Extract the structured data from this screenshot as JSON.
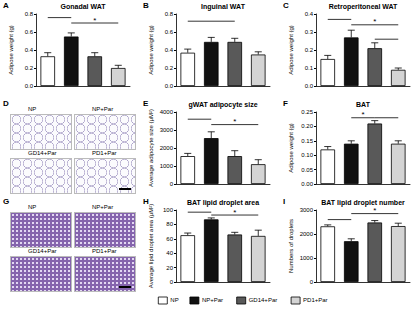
{
  "legend": "bottom",
  "chart_data": [
    {
      "letter": "A",
      "type": "bar",
      "title": "Gonadal WAT",
      "y_label": "Adipose weight (g)",
      "categories": [
        "NP",
        "NP+Par",
        "GD14+Par",
        "PD1+Par"
      ],
      "colors": [
        "#ffffff",
        "#111111",
        "#595959",
        "#d4d4d4"
      ],
      "values": [
        0.33,
        0.55,
        0.33,
        0.2
      ],
      "errors": [
        0.04,
        0.04,
        0.04,
        0.03
      ],
      "ylim": [
        0,
        0.8
      ],
      "yticks": [
        {
          "value": 0,
          "label": "0.0"
        },
        0.2,
        0.4,
        0.6,
        0.8
      ],
      "tick_labels": "y",
      "significance": [
        {
          "from": "NP",
          "to": "NP+Par",
          "y": 0.76
        },
        {
          "from": "NP+Par",
          "to": "PD1+Par",
          "y": 0.7,
          "label": "*"
        }
      ]
    },
    {
      "letter": "B",
      "type": "bar",
      "title": "Inguinal WAT",
      "y_label": "Adipose weight (g)",
      "categories": [
        "NP",
        "NP+Par",
        "GD14+Par",
        "PD1+Par"
      ],
      "colors": [
        "#ffffff",
        "#111111",
        "#595959",
        "#d4d4d4"
      ],
      "values": [
        0.37,
        0.49,
        0.49,
        0.35
      ],
      "errors": [
        0.04,
        0.05,
        0.04,
        0.03
      ],
      "ylim": [
        0,
        0.8
      ],
      "yticks": [
        {
          "value": 0,
          "label": "0.0"
        },
        0.2,
        0.4,
        0.6,
        0.8
      ],
      "tick_labels": "y",
      "significance": [
        {
          "from": "NP",
          "to": "GD14+Par",
          "y": 0.72
        }
      ]
    },
    {
      "letter": "C",
      "type": "bar",
      "title": "Retroperitoneal WAT",
      "y_label": "Adipose weight (g)",
      "categories": [
        "NP",
        "NP+Par",
        "GD14+Par",
        "PD1+Par"
      ],
      "colors": [
        "#ffffff",
        "#111111",
        "#595959",
        "#d4d4d4"
      ],
      "values": [
        0.15,
        0.27,
        0.21,
        0.09
      ],
      "errors": [
        0.02,
        0.04,
        0.03,
        0.01
      ],
      "ylim": [
        0,
        0.4
      ],
      "yticks": [
        {
          "value": 0,
          "label": "0.0"
        },
        0.1,
        0.2,
        0.3,
        0.4
      ],
      "tick_labels": "y",
      "significance": [
        {
          "from": "NP",
          "to": "NP+Par",
          "y": 0.37
        },
        {
          "from": "NP+Par",
          "to": "PD1+Par",
          "y": 0.34,
          "label": "*"
        },
        {
          "from": "GD14+Par",
          "to": "PD1+Par",
          "y": 0.26
        }
      ]
    },
    {
      "letter": "E",
      "type": "bar",
      "title": "gWAT adipocyte size",
      "y_label": "Average adipocyte size (μM²)",
      "categories": [
        "NP",
        "NP+Par",
        "GD14+Par",
        "PD1+Par"
      ],
      "colors": [
        "#ffffff",
        "#111111",
        "#595959",
        "#d4d4d4"
      ],
      "values": [
        1550,
        2550,
        1550,
        1100
      ],
      "errors": [
        150,
        350,
        300,
        250
      ],
      "ylim": [
        0,
        4000
      ],
      "yticks": [
        0,
        1000,
        2000,
        3000,
        4000
      ],
      "tick_labels": "y",
      "significance": [
        {
          "from": "NP",
          "to": "NP+Par",
          "y": 3600
        },
        {
          "from": "NP+Par",
          "to": "PD1+Par",
          "y": 3300,
          "label": "*"
        }
      ]
    },
    {
      "letter": "F",
      "type": "bar",
      "title": "BAT",
      "y_label": "Adipose weight (g)",
      "categories": [
        "NP",
        "NP+Par",
        "GD14+Par",
        "PD1+Par"
      ],
      "colors": [
        "#ffffff",
        "#111111",
        "#595959",
        "#d4d4d4"
      ],
      "values": [
        0.12,
        0.14,
        0.21,
        0.14
      ],
      "errors": [
        0.01,
        0.01,
        0.01,
        0.01
      ],
      "ylim": [
        0,
        0.25
      ],
      "yticks": [
        {
          "value": 0,
          "label": "0.00"
        },
        0.05,
        {
          "value": 0.1,
          "label": "0.10"
        },
        0.15,
        {
          "value": 0.2,
          "label": "0.20"
        },
        0.25
      ],
      "tick_labels": "y",
      "significance": [
        {
          "from": "NP+Par",
          "to": "GD14+Par",
          "y": 0.23,
          "label": "*"
        },
        {
          "from": "GD14+Par",
          "to": "PD1+Par",
          "y": 0.23
        }
      ]
    },
    {
      "letter": "H",
      "type": "bar",
      "title": "BAT lipid droplet area",
      "y_label": "Average lipid droplet area (μM²)",
      "categories": [
        "NP",
        "NP+Par",
        "GD14+Par",
        "PD1+Par"
      ],
      "colors": [
        "#ffffff",
        "#111111",
        "#595959",
        "#d4d4d4"
      ],
      "values": [
        65,
        87,
        66,
        64
      ],
      "errors": [
        3,
        2,
        3,
        8
      ],
      "ylim": [
        0,
        100
      ],
      "yticks": [
        0,
        20,
        40,
        60,
        80,
        100
      ],
      "tick_labels": "y",
      "significance": [
        {
          "from": "NP",
          "to": "NP+Par",
          "y": 97
        },
        {
          "from": "NP+Par",
          "to": "PD1+Par",
          "y": 93,
          "label": "*"
        }
      ]
    },
    {
      "letter": "I",
      "type": "bar",
      "title": "BAT lipid droplet number",
      "y_label": "Numbers of droplets",
      "categories": [
        "NP",
        "NP+Par",
        "GD14+Par",
        "PD1+Par"
      ],
      "colors": [
        "#ffffff",
        "#111111",
        "#595959",
        "#d4d4d4"
      ],
      "values": [
        2320,
        1700,
        2480,
        2330
      ],
      "errors": [
        60,
        100,
        80,
        120
      ],
      "ylim": [
        0,
        3000
      ],
      "yticks": [
        0,
        1000,
        2000,
        3000
      ],
      "tick_labels": "y",
      "significance": [
        {
          "from": "NP",
          "to": "NP+Par",
          "y": 2600
        },
        {
          "from": "NP+Par",
          "to": "PD1+Par",
          "y": 2850,
          "label": "*"
        }
      ]
    }
  ],
  "images": [
    {
      "letter": "D",
      "labels": [
        "NP",
        "NP+Par",
        "GD14+Par",
        "PD1+Par"
      ]
    },
    {
      "letter": "G",
      "labels": [
        "NP",
        "NP+Par",
        "GD14+Par",
        "PD1+Par"
      ]
    }
  ]
}
